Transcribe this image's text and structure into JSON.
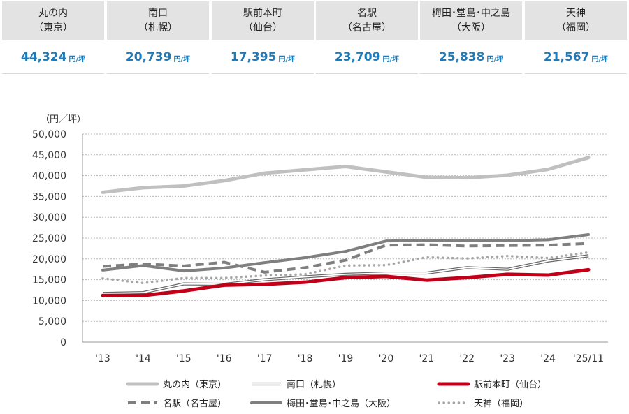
{
  "summary": [
    {
      "name_line1": "丸の内",
      "name_line2": "（東京）",
      "value": "44,324",
      "unit": "円/坪"
    },
    {
      "name_line1": "南口",
      "name_line2": "（札幌）",
      "value": "20,739",
      "unit": "円/坪"
    },
    {
      "name_line1": "駅前本町",
      "name_line2": "（仙台）",
      "value": "17,395",
      "unit": "円/坪"
    },
    {
      "name_line1": "名駅",
      "name_line2": "（名古屋）",
      "value": "23,709",
      "unit": "円/坪"
    },
    {
      "name_line1": "梅田･堂島･中之島",
      "name_line2": "（大阪）",
      "value": "25,838",
      "unit": "円/坪"
    },
    {
      "name_line1": "天神",
      "name_line2": "（福岡）",
      "value": "21,567",
      "unit": "円/坪"
    }
  ],
  "chart_data": {
    "type": "line",
    "title": "",
    "ylabel": "（円／坪）",
    "xlabel": "",
    "ylim": [
      0,
      50000
    ],
    "yticks": [
      0,
      5000,
      10000,
      15000,
      20000,
      25000,
      30000,
      35000,
      40000,
      45000,
      50000
    ],
    "ytick_labels": [
      "0",
      "5,000",
      "10,000",
      "15,000",
      "20,000",
      "25,000",
      "30,000",
      "35,000",
      "40,000",
      "45,000",
      "50,000"
    ],
    "categories": [
      "'13",
      "'14",
      "'15",
      "'16",
      "'17",
      "'18",
      "'19",
      "'20",
      "'21",
      "'22",
      "'23",
      "'24",
      "'25/11"
    ],
    "grid": true,
    "legend_position": "bottom",
    "series": [
      {
        "name": "丸の内（東京）",
        "color": "#c0c0c0",
        "style": "thick",
        "values": [
          36000,
          37100,
          37500,
          38800,
          40600,
          41400,
          42200,
          40900,
          39600,
          39500,
          40100,
          41500,
          44324
        ]
      },
      {
        "name": "南口（札幌）",
        "color": "#666666",
        "style": "double",
        "values": [
          11700,
          11900,
          14000,
          13900,
          15000,
          15700,
          16300,
          16600,
          16600,
          17900,
          17500,
          19500,
          20739
        ]
      },
      {
        "name": "駅前本町（仙台）",
        "color": "#c00018",
        "style": "thick",
        "values": [
          11200,
          11200,
          12300,
          13700,
          13900,
          14400,
          15500,
          15800,
          14900,
          15500,
          16300,
          16100,
          17395
        ]
      },
      {
        "name": "名駅（名古屋）",
        "color": "#7f7f7f",
        "style": "dashed",
        "values": [
          18200,
          18800,
          18300,
          19200,
          16800,
          17900,
          19700,
          23300,
          23400,
          23100,
          23200,
          23300,
          23709
        ]
      },
      {
        "name": "梅田･堂島･中之島（大阪）",
        "color": "#7f7f7f",
        "style": "solid",
        "values": [
          17300,
          18400,
          17100,
          17800,
          19100,
          20300,
          21800,
          24300,
          24400,
          24400,
          24400,
          24600,
          25838
        ]
      },
      {
        "name": "天神（福岡）",
        "color": "#a6a6a6",
        "style": "dotted",
        "values": [
          15300,
          14200,
          15400,
          15400,
          16000,
          16300,
          18400,
          18500,
          20400,
          20100,
          20700,
          20200,
          21567
        ]
      }
    ]
  }
}
